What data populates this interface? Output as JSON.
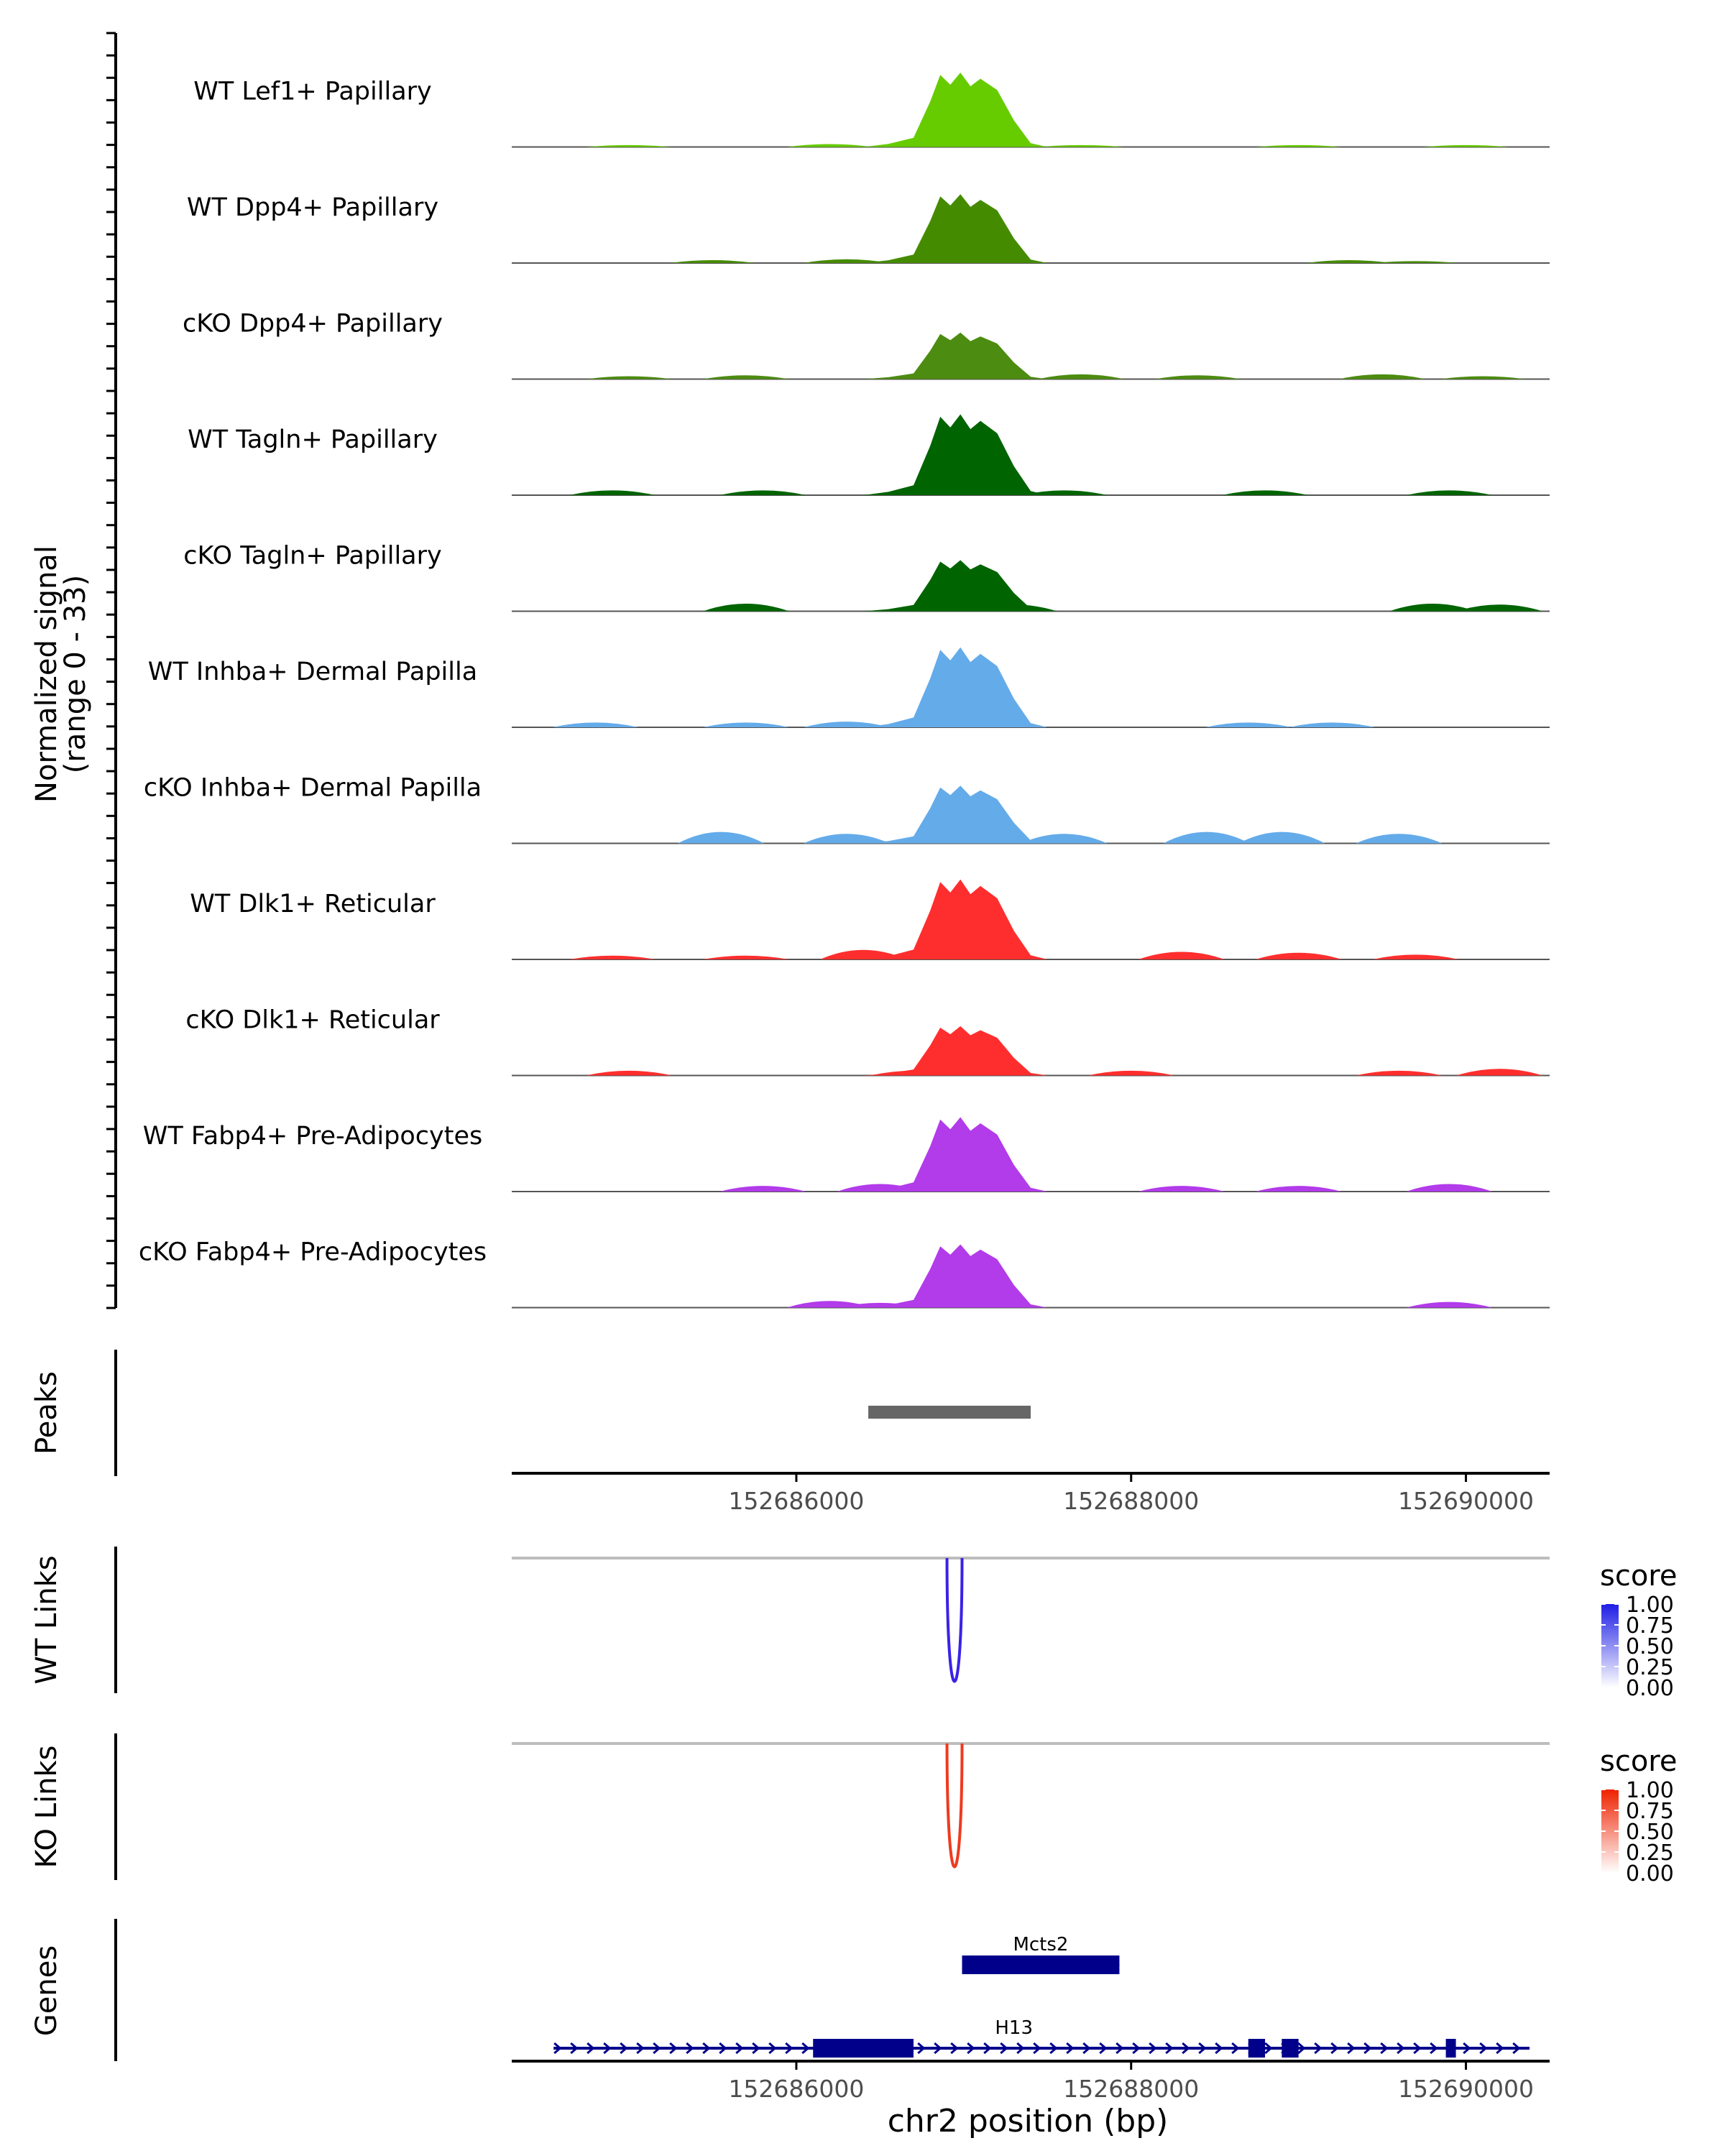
{
  "chart_data": {
    "type": "area",
    "title": "",
    "chromosome": "chr2",
    "xlabel": "chr2 position (bp)",
    "xlim": [
      152684300,
      152690500
    ],
    "xticks": [
      152686000,
      152688000,
      152690000
    ],
    "signal_axis_label": [
      "Normalized signal",
      "(range 0 - 33)"
    ],
    "ylim": [
      0,
      33
    ],
    "series": [
      {
        "name": "WT Lef1+ Papillary",
        "color": "#66CC00",
        "peak_scale": 0.8,
        "tracks": [
          [
            152685000,
            0.02
          ],
          [
            152686200,
            0.03
          ],
          [
            152687700,
            0.02
          ],
          [
            152689000,
            0.02
          ],
          [
            152690000,
            0.02
          ]
        ]
      },
      {
        "name": "WT Dpp4+ Papillary",
        "color": "#458B00",
        "peak_scale": 0.74,
        "tracks": [
          [
            152685500,
            0.03
          ],
          [
            152686300,
            0.04
          ],
          [
            152689300,
            0.03
          ],
          [
            152689700,
            0.02
          ]
        ]
      },
      {
        "name": "cKO Dpp4+ Papillary",
        "color": "#4C8C10",
        "peak_scale": 0.5,
        "tracks": [
          [
            152685000,
            0.03
          ],
          [
            152685700,
            0.04
          ],
          [
            152687700,
            0.05
          ],
          [
            152688400,
            0.04
          ],
          [
            152689500,
            0.05
          ],
          [
            152690100,
            0.03
          ]
        ]
      },
      {
        "name": "WT Tagln+ Papillary",
        "color": "#006400",
        "peak_scale": 0.87,
        "tracks": [
          [
            152684900,
            0.05
          ],
          [
            152685800,
            0.05
          ],
          [
            152687600,
            0.05
          ],
          [
            152688800,
            0.05
          ],
          [
            152689900,
            0.05
          ]
        ]
      },
      {
        "name": "cKO Tagln+ Papillary",
        "color": "#006400",
        "peak_scale": 0.55,
        "tracks": [
          [
            152685700,
            0.08
          ],
          [
            152687300,
            0.07
          ],
          [
            152689800,
            0.08
          ],
          [
            152690200,
            0.07
          ]
        ]
      },
      {
        "name": "WT Inhba+ Dermal Papilla",
        "color": "#64ABEA",
        "peak_scale": 0.86,
        "tracks": [
          [
            152684800,
            0.05
          ],
          [
            152685700,
            0.05
          ],
          [
            152686300,
            0.06
          ],
          [
            152688700,
            0.05
          ],
          [
            152689200,
            0.05
          ]
        ]
      },
      {
        "name": "cKO Inhba+ Dermal Papilla",
        "color": "#64ABEA",
        "peak_scale": 0.62,
        "tracks": [
          [
            152685550,
            0.12
          ],
          [
            152686300,
            0.1
          ],
          [
            152687600,
            0.1
          ],
          [
            152688450,
            0.12
          ],
          [
            152688900,
            0.12
          ],
          [
            152689600,
            0.1
          ]
        ]
      },
      {
        "name": "WT Dlk1+ Reticular",
        "color": "#FF2E2E",
        "peak_scale": 0.86,
        "tracks": [
          [
            152684900,
            0.04
          ],
          [
            152685700,
            0.04
          ],
          [
            152686400,
            0.1
          ],
          [
            152688300,
            0.08
          ],
          [
            152689000,
            0.07
          ],
          [
            152689700,
            0.05
          ]
        ]
      },
      {
        "name": "cKO Dlk1+ Reticular",
        "color": "#FF2E2E",
        "peak_scale": 0.53,
        "tracks": [
          [
            152685000,
            0.05
          ],
          [
            152686700,
            0.05
          ],
          [
            152688000,
            0.05
          ],
          [
            152689600,
            0.05
          ],
          [
            152690200,
            0.07
          ]
        ]
      },
      {
        "name": "WT Fabp4+ Pre-Adipocytes",
        "color": "#B23BEA",
        "peak_scale": 0.8,
        "tracks": [
          [
            152685800,
            0.06
          ],
          [
            152686500,
            0.08
          ],
          [
            152688300,
            0.06
          ],
          [
            152689000,
            0.06
          ],
          [
            152689900,
            0.08
          ]
        ]
      },
      {
        "name": "cKO Fabp4+ Pre-Adipocytes",
        "color": "#B23BEA",
        "peak_scale": 0.68,
        "tracks": [
          [
            152686200,
            0.07
          ],
          [
            152686500,
            0.05
          ],
          [
            152689900,
            0.06
          ]
        ]
      }
    ],
    "peak_profile": [
      [
        152686400,
        0
      ],
      [
        152686550,
        0.04
      ],
      [
        152686700,
        0.12
      ],
      [
        152686800,
        0.6
      ],
      [
        152686860,
        0.95
      ],
      [
        152686920,
        0.82
      ],
      [
        152686980,
        0.98
      ],
      [
        152687040,
        0.8
      ],
      [
        152687100,
        0.9
      ],
      [
        152687200,
        0.75
      ],
      [
        152687300,
        0.35
      ],
      [
        152687400,
        0.05
      ],
      [
        152687500,
        0
      ]
    ],
    "peaks_track": {
      "label": "Peaks",
      "regions": [
        {
          "start": 152686430,
          "end": 152687400,
          "color": "#666666"
        }
      ]
    },
    "links": [
      {
        "label": "WT Links",
        "start": 152686900,
        "end": 152686990,
        "score": 1.0,
        "color": "#3A22E6",
        "legend_title": "score",
        "legend_ticks": [
          "1.00",
          "0.75",
          "0.50",
          "0.25",
          "0.00"
        ],
        "legend_high": "#1E1EE6"
      },
      {
        "label": "KO Links",
        "start": 152686900,
        "end": 152686990,
        "score": 1.0,
        "color": "#EE3A20",
        "legend_title": "score",
        "legend_ticks": [
          "1.00",
          "0.75",
          "0.50",
          "0.25",
          "0.00"
        ],
        "legend_high": "#EE2200"
      }
    ],
    "genes_track": {
      "label": "Genes",
      "genes": [
        {
          "name": "Mcts2",
          "start": 152686990,
          "end": 152687930,
          "strand": "-",
          "exons": [
            [
              152686990,
              152687930
            ]
          ],
          "row": 0
        },
        {
          "name": "H13",
          "start": 152684550,
          "end": 152690380,
          "strand": "+",
          "exons": [
            [
              152686100,
              152686700
            ],
            [
              152688700,
              152688800
            ],
            [
              152688900,
              152689000
            ],
            [
              152689880,
              152689940
            ]
          ],
          "row": 1
        }
      ]
    }
  }
}
